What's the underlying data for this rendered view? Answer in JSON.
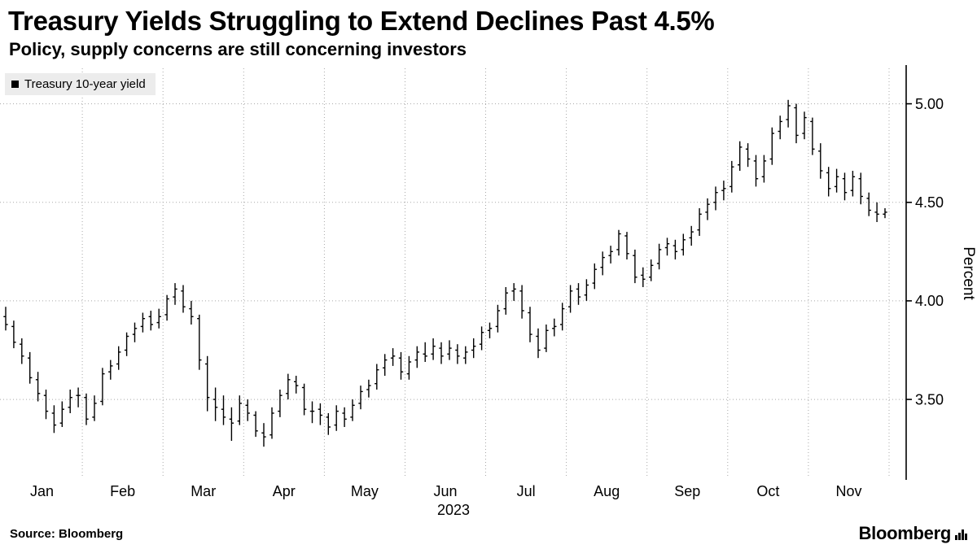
{
  "header": {
    "title": "Treasury Yields Struggling to Extend Declines Past 4.5%",
    "subtitle": "Policy, supply concerns are still concerning investors"
  },
  "legend": {
    "marker": "black-square",
    "label": "Treasury 10-year yield"
  },
  "source": {
    "label": "Source:",
    "value": "Bloomberg"
  },
  "branding": {
    "wordmark": "Bloomberg",
    "icon": "bar-chart-glyph"
  },
  "chart_data": {
    "type": "ohlc",
    "title": "Treasury Yields Struggling to Extend Declines Past 4.5%",
    "subtitle": "Policy, supply concerns are still concerning investors",
    "ylabel": "Percent",
    "yticks": [
      3.5,
      4.0,
      4.5,
      5.0
    ],
    "ytick_labels": [
      "3.50",
      "4.00",
      "4.50",
      "5.00"
    ],
    "ylim": [
      3.1,
      5.18
    ],
    "x_months": [
      "Jan",
      "Feb",
      "Mar",
      "Apr",
      "May",
      "Jun",
      "Jul",
      "Aug",
      "Sep",
      "Oct",
      "Nov"
    ],
    "year_label": "2023",
    "bars_per_month": 10,
    "grid": "dotted",
    "legend_position": "top-left",
    "colors": {
      "bars": "#000000",
      "grid": "#a8a8a8",
      "legend_bg": "#ececec"
    },
    "series": [
      {
        "name": "Treasury 10-year yield",
        "ohlc_format": [
          "open",
          "high",
          "low",
          "close"
        ],
        "ohlc": [
          [
            3.92,
            3.97,
            3.85,
            3.88
          ],
          [
            3.87,
            3.9,
            3.76,
            3.79
          ],
          [
            3.78,
            3.81,
            3.68,
            3.72
          ],
          [
            3.71,
            3.74,
            3.58,
            3.61
          ],
          [
            3.6,
            3.64,
            3.49,
            3.53
          ],
          [
            3.52,
            3.55,
            3.4,
            3.44
          ],
          [
            3.43,
            3.47,
            3.33,
            3.37
          ],
          [
            3.38,
            3.49,
            3.36,
            3.45
          ],
          [
            3.46,
            3.55,
            3.43,
            3.51
          ],
          [
            3.52,
            3.56,
            3.46,
            3.52
          ],
          [
            3.51,
            3.53,
            3.37,
            3.4
          ],
          [
            3.41,
            3.52,
            3.39,
            3.48
          ],
          [
            3.49,
            3.66,
            3.47,
            3.63
          ],
          [
            3.64,
            3.7,
            3.6,
            3.67
          ],
          [
            3.68,
            3.77,
            3.65,
            3.74
          ],
          [
            3.75,
            3.84,
            3.72,
            3.82
          ],
          [
            3.83,
            3.89,
            3.79,
            3.86
          ],
          [
            3.87,
            3.94,
            3.84,
            3.91
          ],
          [
            3.92,
            3.95,
            3.85,
            3.88
          ],
          [
            3.89,
            3.96,
            3.86,
            3.92
          ],
          [
            3.93,
            4.03,
            3.9,
            4.01
          ],
          [
            4.02,
            4.09,
            3.98,
            4.06
          ],
          [
            4.05,
            4.08,
            3.94,
            3.97
          ],
          [
            3.96,
            4.0,
            3.88,
            3.92
          ],
          [
            3.91,
            3.93,
            3.65,
            3.7
          ],
          [
            3.68,
            3.72,
            3.44,
            3.51
          ],
          [
            3.5,
            3.56,
            3.39,
            3.46
          ],
          [
            3.45,
            3.52,
            3.37,
            3.41
          ],
          [
            3.4,
            3.46,
            3.29,
            3.38
          ],
          [
            3.39,
            3.52,
            3.37,
            3.48
          ],
          [
            3.47,
            3.5,
            3.39,
            3.43
          ],
          [
            3.42,
            3.44,
            3.31,
            3.34
          ],
          [
            3.33,
            3.38,
            3.26,
            3.31
          ],
          [
            3.32,
            3.46,
            3.3,
            3.43
          ],
          [
            3.44,
            3.55,
            3.41,
            3.52
          ],
          [
            3.53,
            3.63,
            3.5,
            3.6
          ],
          [
            3.59,
            3.62,
            3.53,
            3.57
          ],
          [
            3.56,
            3.58,
            3.42,
            3.45
          ],
          [
            3.44,
            3.49,
            3.38,
            3.44
          ],
          [
            3.45,
            3.48,
            3.37,
            3.42
          ],
          [
            3.41,
            3.43,
            3.32,
            3.36
          ],
          [
            3.37,
            3.47,
            3.34,
            3.44
          ],
          [
            3.43,
            3.46,
            3.36,
            3.4
          ],
          [
            3.41,
            3.5,
            3.39,
            3.47
          ],
          [
            3.48,
            3.57,
            3.45,
            3.54
          ],
          [
            3.55,
            3.6,
            3.51,
            3.57
          ],
          [
            3.58,
            3.68,
            3.55,
            3.65
          ],
          [
            3.66,
            3.73,
            3.62,
            3.7
          ],
          [
            3.71,
            3.76,
            3.67,
            3.72
          ],
          [
            3.71,
            3.74,
            3.6,
            3.64
          ],
          [
            3.63,
            3.72,
            3.6,
            3.69
          ],
          [
            3.7,
            3.77,
            3.66,
            3.74
          ],
          [
            3.73,
            3.79,
            3.69,
            3.72
          ],
          [
            3.73,
            3.81,
            3.7,
            3.77
          ],
          [
            3.76,
            3.79,
            3.68,
            3.72
          ],
          [
            3.73,
            3.8,
            3.7,
            3.76
          ],
          [
            3.75,
            3.78,
            3.68,
            3.72
          ],
          [
            3.71,
            3.77,
            3.68,
            3.74
          ],
          [
            3.75,
            3.81,
            3.71,
            3.77
          ],
          [
            3.78,
            3.87,
            3.75,
            3.84
          ],
          [
            3.85,
            3.89,
            3.81,
            3.86
          ],
          [
            3.87,
            3.98,
            3.84,
            3.95
          ],
          [
            3.96,
            4.07,
            3.93,
            4.04
          ],
          [
            4.05,
            4.09,
            4.0,
            4.06
          ],
          [
            4.05,
            4.08,
            3.91,
            3.95
          ],
          [
            3.94,
            3.97,
            3.79,
            3.83
          ],
          [
            3.82,
            3.86,
            3.71,
            3.75
          ],
          [
            3.76,
            3.88,
            3.74,
            3.85
          ],
          [
            3.86,
            3.91,
            3.82,
            3.87
          ],
          [
            3.88,
            3.99,
            3.85,
            3.96
          ],
          [
            3.97,
            4.08,
            3.94,
            4.05
          ],
          [
            4.06,
            4.09,
            3.98,
            4.02
          ],
          [
            4.03,
            4.11,
            4.0,
            4.08
          ],
          [
            4.09,
            4.19,
            4.06,
            4.16
          ],
          [
            4.17,
            4.25,
            4.13,
            4.22
          ],
          [
            4.23,
            4.28,
            4.19,
            4.25
          ],
          [
            4.26,
            4.36,
            4.23,
            4.34
          ],
          [
            4.33,
            4.35,
            4.21,
            4.24
          ],
          [
            4.23,
            4.26,
            4.09,
            4.12
          ],
          [
            4.13,
            4.17,
            4.07,
            4.11
          ],
          [
            4.12,
            4.21,
            4.1,
            4.18
          ],
          [
            4.19,
            4.29,
            4.16,
            4.26
          ],
          [
            4.27,
            4.32,
            4.23,
            4.29
          ],
          [
            4.28,
            4.31,
            4.21,
            4.25
          ],
          [
            4.26,
            4.34,
            4.23,
            4.31
          ],
          [
            4.32,
            4.38,
            4.28,
            4.35
          ],
          [
            4.36,
            4.47,
            4.33,
            4.44
          ],
          [
            4.45,
            4.52,
            4.41,
            4.49
          ],
          [
            4.5,
            4.58,
            4.46,
            4.55
          ],
          [
            4.56,
            4.61,
            4.51,
            4.57
          ],
          [
            4.58,
            4.71,
            4.55,
            4.68
          ],
          [
            4.69,
            4.81,
            4.66,
            4.78
          ],
          [
            4.77,
            4.8,
            4.68,
            4.72
          ],
          [
            4.71,
            4.74,
            4.58,
            4.62
          ],
          [
            4.63,
            4.74,
            4.6,
            4.71
          ],
          [
            4.72,
            4.88,
            4.69,
            4.85
          ],
          [
            4.86,
            4.94,
            4.82,
            4.91
          ],
          [
            4.92,
            5.02,
            4.88,
            4.99
          ],
          [
            4.98,
            5.0,
            4.8,
            4.84
          ],
          [
            4.85,
            4.96,
            4.82,
            4.93
          ],
          [
            4.91,
            4.93,
            4.74,
            4.77
          ],
          [
            4.76,
            4.8,
            4.62,
            4.66
          ],
          [
            4.65,
            4.68,
            4.53,
            4.57
          ],
          [
            4.58,
            4.67,
            4.55,
            4.63
          ],
          [
            4.62,
            4.65,
            4.51,
            4.55
          ],
          [
            4.56,
            4.66,
            4.53,
            4.63
          ],
          [
            4.62,
            4.65,
            4.49,
            4.53
          ],
          [
            4.52,
            4.55,
            4.43,
            4.46
          ],
          [
            4.45,
            4.5,
            4.4,
            4.44
          ],
          [
            4.44,
            4.47,
            4.42,
            4.45
          ]
        ]
      }
    ]
  }
}
